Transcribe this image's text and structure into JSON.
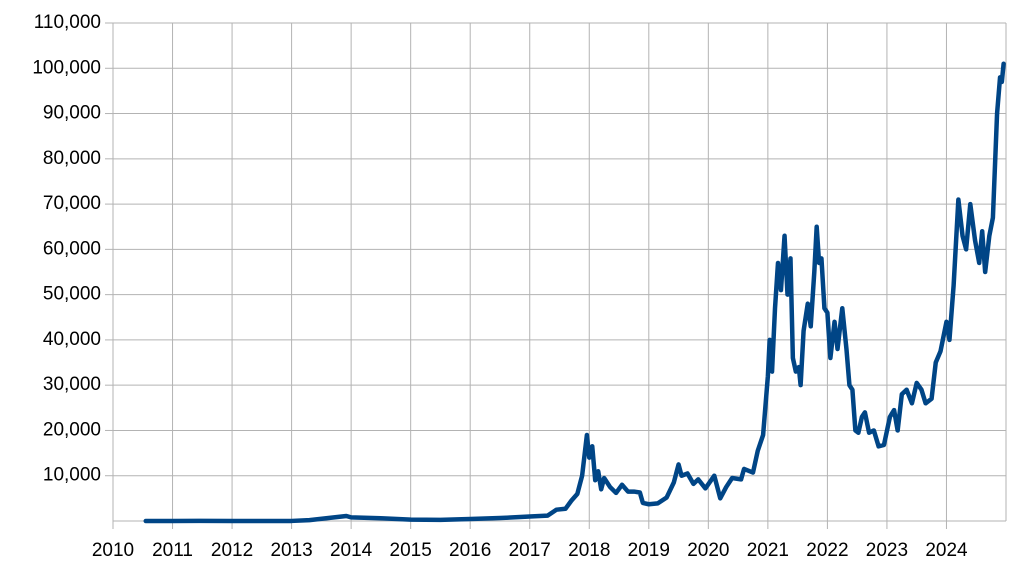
{
  "chart_data": {
    "type": "line",
    "x": [
      2010.55,
      2011.0,
      2011.45,
      2012.0,
      2013.0,
      2013.3,
      2013.92,
      2014.0,
      2014.5,
      2015.0,
      2015.5,
      2016.0,
      2016.5,
      2017.0,
      2017.3,
      2017.45,
      2017.6,
      2017.7,
      2017.8,
      2017.88,
      2017.96,
      2018.0,
      2018.05,
      2018.1,
      2018.15,
      2018.2,
      2018.25,
      2018.35,
      2018.45,
      2018.55,
      2018.65,
      2018.75,
      2018.85,
      2018.9,
      2019.0,
      2019.15,
      2019.3,
      2019.42,
      2019.5,
      2019.55,
      2019.65,
      2019.75,
      2019.83,
      2019.95,
      2020.1,
      2020.2,
      2020.3,
      2020.4,
      2020.55,
      2020.6,
      2020.75,
      2020.83,
      2020.92,
      2021.0,
      2021.03,
      2021.07,
      2021.12,
      2021.17,
      2021.22,
      2021.28,
      2021.33,
      2021.38,
      2021.42,
      2021.47,
      2021.52,
      2021.55,
      2021.6,
      2021.67,
      2021.72,
      2021.78,
      2021.82,
      2021.86,
      2021.9,
      2021.95,
      2022.0,
      2022.05,
      2022.12,
      2022.17,
      2022.25,
      2022.32,
      2022.37,
      2022.42,
      2022.47,
      2022.52,
      2022.58,
      2022.63,
      2022.7,
      2022.78,
      2022.86,
      2022.95,
      2023.05,
      2023.12,
      2023.18,
      2023.25,
      2023.33,
      2023.42,
      2023.5,
      2023.58,
      2023.65,
      2023.75,
      2023.82,
      2023.9,
      2024.0,
      2024.05,
      2024.12,
      2024.2,
      2024.27,
      2024.33,
      2024.4,
      2024.48,
      2024.55,
      2024.6,
      2024.65,
      2024.72,
      2024.78,
      2024.85,
      2024.9,
      2024.93,
      2024.96
    ],
    "series": [
      {
        "color": "#004586",
        "values": [
          0.1,
          0.3,
          15,
          5,
          13,
          200,
          1100,
          800,
          600,
          300,
          250,
          430,
          650,
          1000,
          1200,
          2500,
          2700,
          4500,
          6000,
          10000,
          19000,
          14000,
          16500,
          9000,
          11000,
          7000,
          9500,
          7500,
          6200,
          8000,
          6500,
          6500,
          6300,
          4000,
          3700,
          3900,
          5200,
          8500,
          12500,
          10000,
          10500,
          8200,
          9200,
          7200,
          10000,
          5000,
          7500,
          9500,
          9200,
          11500,
          10700,
          15500,
          19000,
          32000,
          40000,
          33000,
          47000,
          57000,
          51000,
          63000,
          50000,
          58000,
          36000,
          33000,
          34000,
          30000,
          42000,
          48000,
          43000,
          55000,
          65000,
          57000,
          58000,
          47000,
          46000,
          36000,
          44000,
          38000,
          47000,
          38000,
          30000,
          29000,
          20000,
          19500,
          23000,
          24000,
          19500,
          20000,
          16500,
          16800,
          23000,
          24500,
          20000,
          28000,
          29000,
          26000,
          30500,
          29000,
          26000,
          27000,
          35000,
          37500,
          44000,
          40000,
          52000,
          71000,
          63000,
          60000,
          70000,
          62000,
          57000,
          64000,
          55000,
          63000,
          67000,
          90000,
          98000,
          97000,
          101000
        ]
      }
    ],
    "xlim": [
      2010,
      2025
    ],
    "xticks": [
      2010,
      2011,
      2012,
      2013,
      2014,
      2015,
      2016,
      2017,
      2018,
      2019,
      2020,
      2021,
      2022,
      2023,
      2024
    ],
    "ylim": [
      0,
      110000
    ],
    "yticks": [
      {
        "value": 10000,
        "label": "10,000"
      },
      {
        "value": 20000,
        "label": "20,000"
      },
      {
        "value": 30000,
        "label": "30,000"
      },
      {
        "value": 40000,
        "label": "40,000"
      },
      {
        "value": 50000,
        "label": "50,000"
      },
      {
        "value": 60000,
        "label": "60,000"
      },
      {
        "value": 70000,
        "label": "70,000"
      },
      {
        "value": 80000,
        "label": "80,000"
      },
      {
        "value": 90000,
        "label": "90,000"
      },
      {
        "value": 100000,
        "label": "100,000"
      },
      {
        "value": 110000,
        "label": "110,000"
      }
    ],
    "grid": true
  }
}
